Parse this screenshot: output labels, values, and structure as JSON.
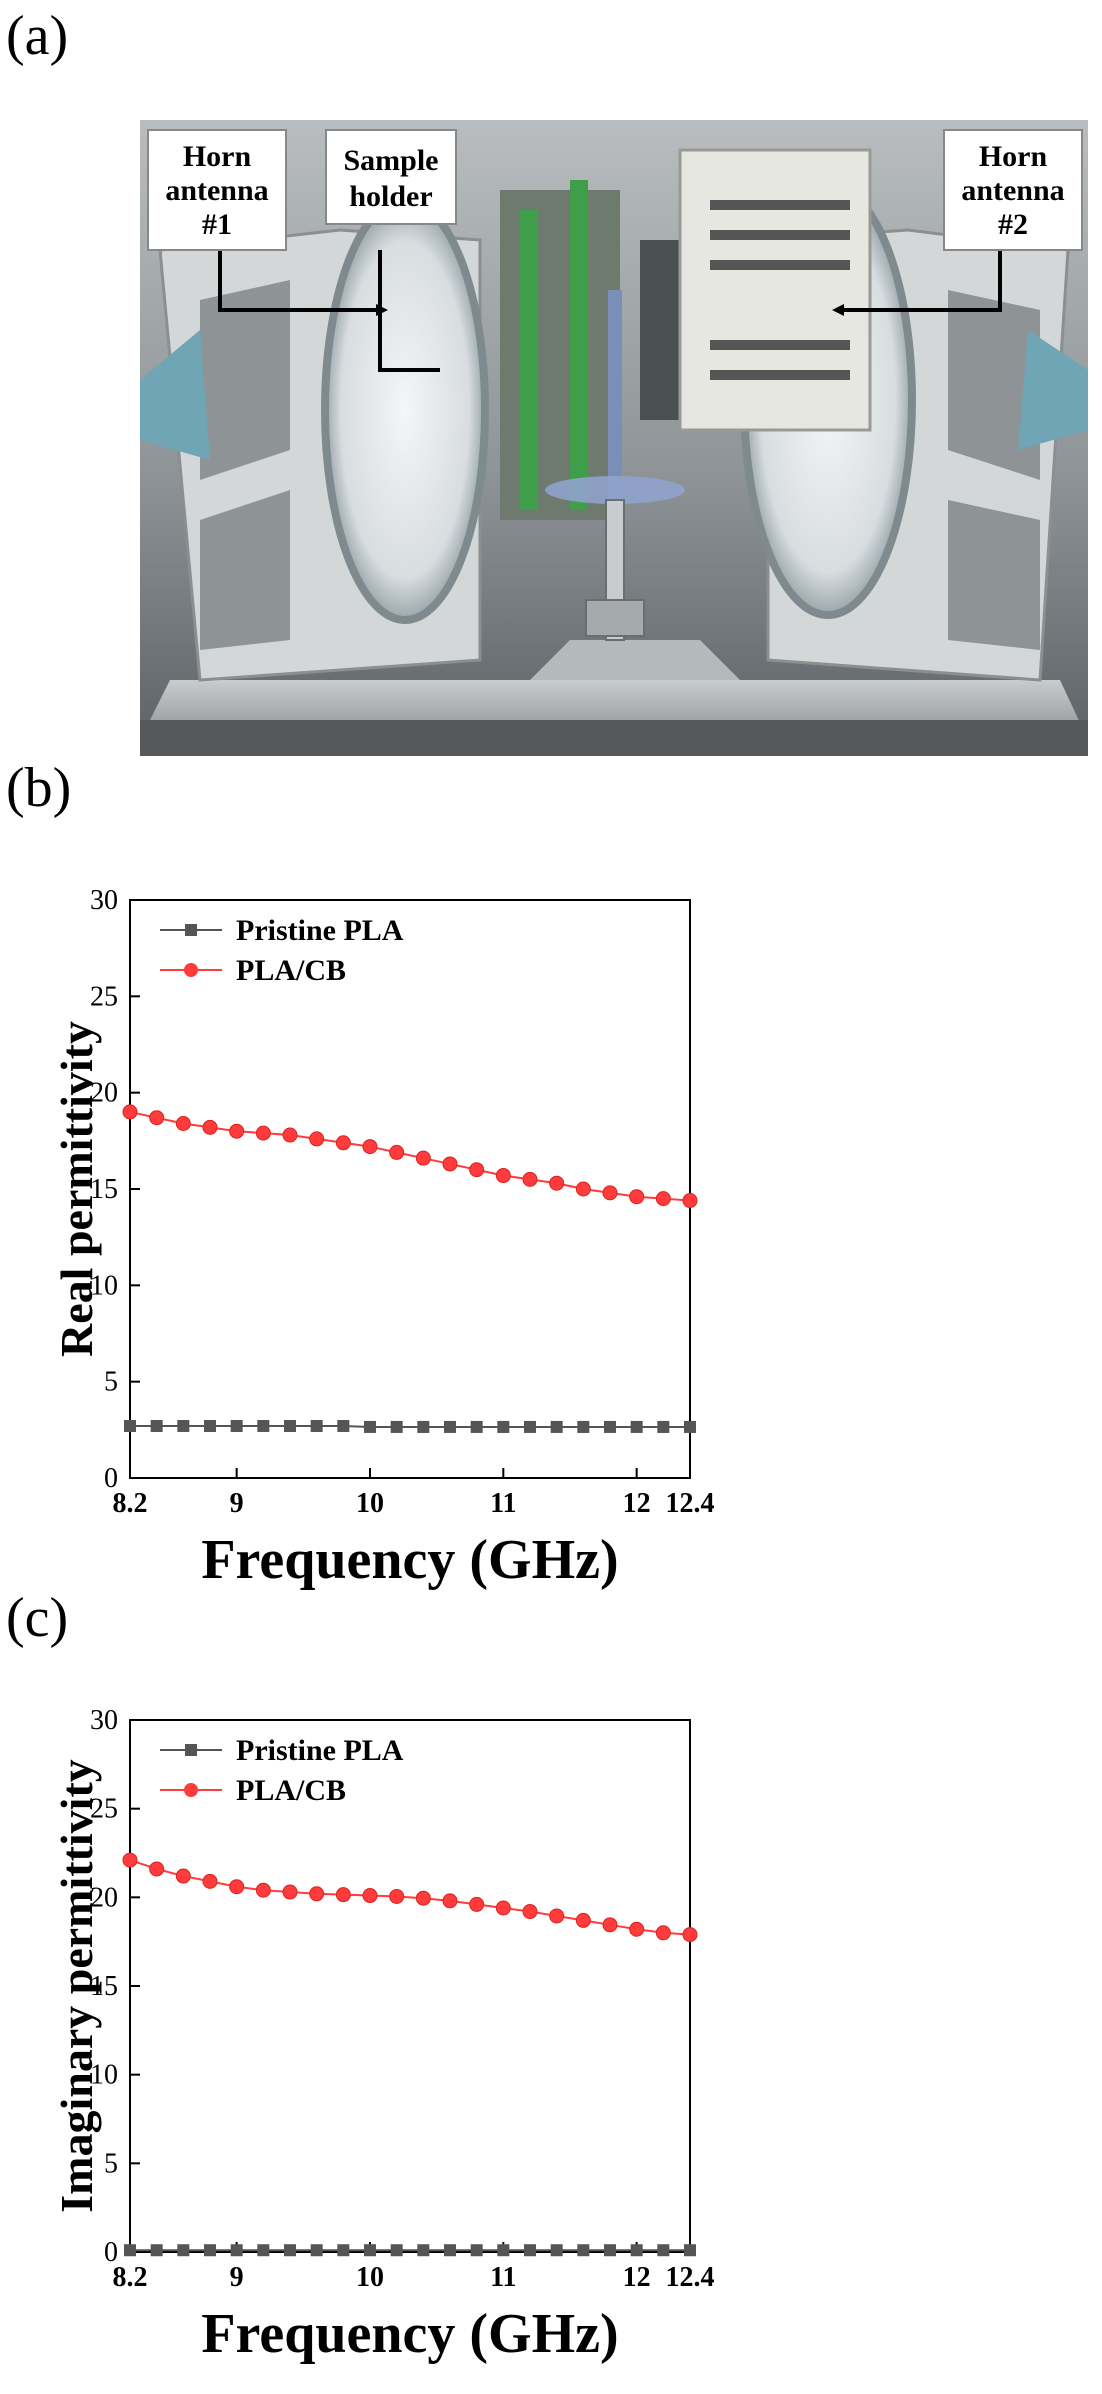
{
  "panels": {
    "a": "(a)",
    "b": "(b)",
    "c": "(c)"
  },
  "photo": {
    "callouts": {
      "horn1": [
        "Horn",
        "antenna",
        "#1"
      ],
      "sample": [
        "Sample",
        "holder"
      ],
      "horn2": [
        "Horn",
        "antenna",
        "#2"
      ]
    }
  },
  "colors": {
    "pristine": "#555555",
    "placb": "#ff3b3b",
    "axis": "#000000"
  },
  "chart_data": [
    {
      "type": "line",
      "ylabel": "Real permittivity",
      "xlabel": "Frequency (GHz)",
      "xlim": [
        8.2,
        12.4
      ],
      "ylim": [
        0,
        30
      ],
      "xticks": [
        8.2,
        9,
        10,
        11,
        12,
        12.4
      ],
      "xtick_labels": [
        "8.2",
        "9",
        "10",
        "11",
        "12",
        "12.4"
      ],
      "yticks": [
        0,
        5,
        10,
        15,
        20,
        25,
        30
      ],
      "ytick_labels": [
        "0",
        "5",
        "10",
        "15",
        "20",
        "25",
        "30"
      ],
      "legend": [
        "Pristine PLA",
        "PLA/CB"
      ],
      "x": [
        8.2,
        8.4,
        8.6,
        8.8,
        9.0,
        9.2,
        9.4,
        9.6,
        9.8,
        10.0,
        10.2,
        10.4,
        10.6,
        10.8,
        11.0,
        11.2,
        11.4,
        11.6,
        11.8,
        12.0,
        12.2,
        12.4
      ],
      "series": [
        {
          "name": "Pristine PLA",
          "marker": "square",
          "values": [
            2.7,
            2.7,
            2.7,
            2.7,
            2.7,
            2.7,
            2.7,
            2.7,
            2.7,
            2.65,
            2.65,
            2.65,
            2.65,
            2.65,
            2.65,
            2.65,
            2.65,
            2.65,
            2.65,
            2.65,
            2.65,
            2.65
          ]
        },
        {
          "name": "PLA/CB",
          "marker": "circle",
          "values": [
            19.0,
            18.7,
            18.4,
            18.2,
            18.0,
            17.9,
            17.8,
            17.6,
            17.4,
            17.2,
            16.9,
            16.6,
            16.3,
            16.0,
            15.7,
            15.5,
            15.3,
            15.0,
            14.8,
            14.6,
            14.5,
            14.4
          ]
        }
      ]
    },
    {
      "type": "line",
      "ylabel": "Imaginary permittivity",
      "xlabel": "Frequency (GHz)",
      "xlim": [
        8.2,
        12.4
      ],
      "ylim": [
        0,
        30
      ],
      "xticks": [
        8.2,
        9,
        10,
        11,
        12,
        12.4
      ],
      "xtick_labels": [
        "8.2",
        "9",
        "10",
        "11",
        "12",
        "12.4"
      ],
      "yticks": [
        0,
        5,
        10,
        15,
        20,
        25,
        30
      ],
      "ytick_labels": [
        "0",
        "5",
        "10",
        "15",
        "20",
        "25",
        "30"
      ],
      "legend": [
        "Pristine PLA",
        "PLA/CB"
      ],
      "x": [
        8.2,
        8.4,
        8.6,
        8.8,
        9.0,
        9.2,
        9.4,
        9.6,
        9.8,
        10.0,
        10.2,
        10.4,
        10.6,
        10.8,
        11.0,
        11.2,
        11.4,
        11.6,
        11.8,
        12.0,
        12.2,
        12.4
      ],
      "series": [
        {
          "name": "Pristine PLA",
          "marker": "square",
          "values": [
            0.1,
            0.1,
            0.1,
            0.1,
            0.1,
            0.1,
            0.1,
            0.1,
            0.1,
            0.1,
            0.1,
            0.1,
            0.1,
            0.1,
            0.1,
            0.1,
            0.1,
            0.1,
            0.1,
            0.1,
            0.1,
            0.1
          ]
        },
        {
          "name": "PLA/CB",
          "marker": "circle",
          "values": [
            22.1,
            21.6,
            21.2,
            20.9,
            20.6,
            20.4,
            20.3,
            20.2,
            20.15,
            20.1,
            20.05,
            19.95,
            19.8,
            19.6,
            19.4,
            19.2,
            18.95,
            18.7,
            18.45,
            18.2,
            18.0,
            17.9
          ]
        }
      ]
    }
  ]
}
